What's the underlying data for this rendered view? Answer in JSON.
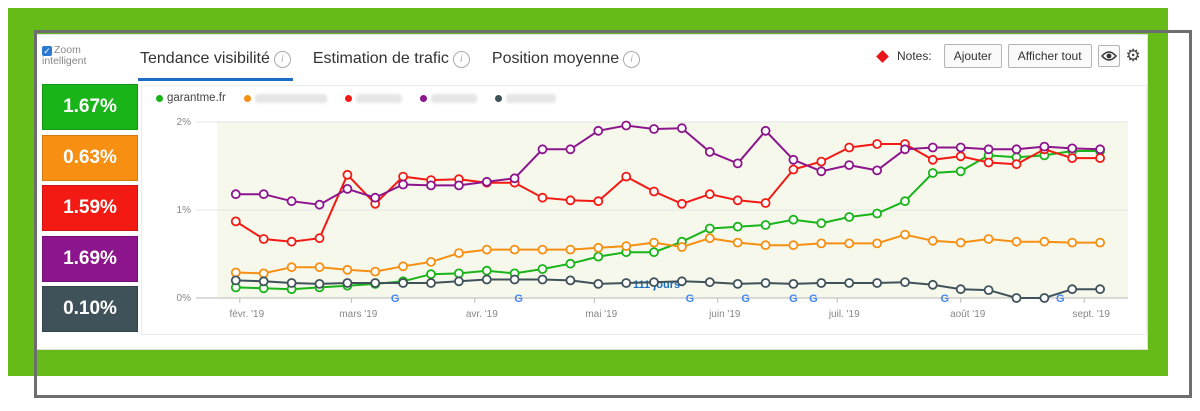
{
  "zoom": {
    "label_line1": "Zoom",
    "label_line2": "intelligent",
    "checked": true
  },
  "tabs": [
    {
      "label": "Tendance visibilité",
      "active": true
    },
    {
      "label": "Estimation de trafic",
      "active": false
    },
    {
      "label": "Position moyenne",
      "active": false
    }
  ],
  "notes": {
    "label": "Notes:",
    "add_label": "Ajouter",
    "show_all_label": "Afficher tout",
    "eye_icon": "eye-icon",
    "gear_icon": "gear-icon",
    "marker_color": "#e8161b"
  },
  "tiles": [
    {
      "value": "1.67%",
      "color": "#18b418"
    },
    {
      "value": "0.63%",
      "color": "#f78f12"
    },
    {
      "value": "1.59%",
      "color": "#f21a13"
    },
    {
      "value": "1.69%",
      "color": "#8c148c"
    },
    {
      "value": "0.10%",
      "color": "#405259"
    }
  ],
  "legend": [
    {
      "label": "garantme.fr",
      "color": "#18b418",
      "blurred": false
    },
    {
      "label": "",
      "color": "#f78f12",
      "blurred": true
    },
    {
      "label": "",
      "color": "#f21a13",
      "blurred": true
    },
    {
      "label": "",
      "color": "#8c148c",
      "blurred": true
    },
    {
      "label": "",
      "color": "#405259",
      "blurred": true
    }
  ],
  "chart_data": {
    "type": "line",
    "x": [
      "2019-01-31",
      "2019-02-07",
      "2019-02-14",
      "2019-02-21",
      "2019-02-28",
      "2019-03-07",
      "2019-03-14",
      "2019-03-21",
      "2019-03-28",
      "2019-04-04",
      "2019-04-11",
      "2019-04-18",
      "2019-04-25",
      "2019-05-02",
      "2019-05-09",
      "2019-05-16",
      "2019-05-23",
      "2019-05-30",
      "2019-06-06",
      "2019-06-13",
      "2019-06-20",
      "2019-06-27",
      "2019-07-04",
      "2019-07-11",
      "2019-07-18",
      "2019-07-25",
      "2019-08-01",
      "2019-08-08",
      "2019-08-15",
      "2019-08-22",
      "2019-08-29",
      "2019-09-05"
    ],
    "x_ticks": [
      "févr. '19",
      "mars '19",
      "avr. '19",
      "mai '19",
      "juin '19",
      "juil. '19",
      "août '19",
      "sept. '19"
    ],
    "y_ticks": [
      "0%",
      "1%",
      "2%"
    ],
    "ylim": [
      0,
      2
    ],
    "grid": true,
    "series": [
      {
        "name": "garantme.fr",
        "color": "#18b418",
        "values": [
          0.12,
          0.11,
          0.1,
          0.12,
          0.14,
          0.16,
          0.19,
          0.27,
          0.28,
          0.31,
          0.28,
          0.33,
          0.39,
          0.47,
          0.52,
          0.52,
          0.64,
          0.79,
          0.81,
          0.83,
          0.89,
          0.85,
          0.92,
          0.96,
          1.1,
          1.42,
          1.44,
          1.62,
          1.6,
          1.62,
          1.67,
          1.67
        ]
      },
      {
        "name": "",
        "color": "#f78f12",
        "values": [
          0.29,
          0.28,
          0.35,
          0.35,
          0.32,
          0.3,
          0.36,
          0.41,
          0.51,
          0.55,
          0.55,
          0.55,
          0.55,
          0.57,
          0.59,
          0.63,
          0.58,
          0.68,
          0.63,
          0.6,
          0.6,
          0.62,
          0.62,
          0.62,
          0.72,
          0.65,
          0.63,
          0.67,
          0.64,
          0.64,
          0.63,
          0.63
        ]
      },
      {
        "name": "",
        "color": "#f21a13",
        "values": [
          0.87,
          0.67,
          0.64,
          0.68,
          1.4,
          1.07,
          1.38,
          1.34,
          1.35,
          1.31,
          1.31,
          1.14,
          1.11,
          1.1,
          1.38,
          1.21,
          1.07,
          1.18,
          1.11,
          1.08,
          1.46,
          1.55,
          1.71,
          1.75,
          1.75,
          1.57,
          1.61,
          1.54,
          1.52,
          1.69,
          1.59,
          1.59
        ]
      },
      {
        "name": "",
        "color": "#8c148c",
        "values": [
          1.18,
          1.18,
          1.1,
          1.06,
          1.24,
          1.14,
          1.29,
          1.28,
          1.28,
          1.32,
          1.36,
          1.69,
          1.69,
          1.9,
          1.96,
          1.92,
          1.93,
          1.66,
          1.53,
          1.9,
          1.57,
          1.44,
          1.51,
          1.45,
          1.69,
          1.71,
          1.71,
          1.69,
          1.69,
          1.72,
          1.7,
          1.69
        ]
      },
      {
        "name": "",
        "color": "#405259",
        "values": [
          0.2,
          0.19,
          0.17,
          0.16,
          0.17,
          0.17,
          0.17,
          0.17,
          0.19,
          0.21,
          0.21,
          0.21,
          0.2,
          0.16,
          0.17,
          0.18,
          0.19,
          0.18,
          0.16,
          0.17,
          0.16,
          0.17,
          0.17,
          0.17,
          0.18,
          0.15,
          0.1,
          0.09,
          0.0,
          0.0,
          0.1,
          0.1
        ]
      }
    ],
    "annotation": "111 jours",
    "google_update_markers": [
      "2019-03-12",
      "2019-04-12",
      "2019-05-25",
      "2019-06-08",
      "2019-06-20",
      "2019-06-25",
      "2019-07-28",
      "2019-08-26"
    ]
  }
}
